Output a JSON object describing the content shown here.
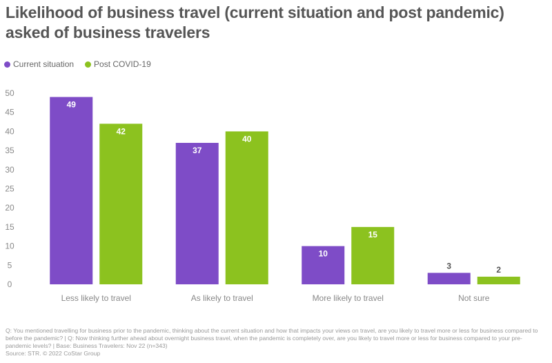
{
  "title": "Likelihood of business travel (current situation and post pandemic) asked of business travelers",
  "legend": [
    {
      "name": "Current situation",
      "color": "#7e4cc7"
    },
    {
      "name": "Post COVID-19",
      "color": "#8cc21f"
    }
  ],
  "chart_data": {
    "type": "bar",
    "title": "Likelihood of business travel (current situation and post pandemic) asked of business travelers",
    "categories": [
      "Less likely to travel",
      "As likely to travel",
      "More likely to travel",
      "Not sure"
    ],
    "series": [
      {
        "name": "Current situation",
        "color": "#7e4cc7",
        "values": [
          49,
          37,
          10,
          3
        ]
      },
      {
        "name": "Post COVID-19",
        "color": "#8cc21f",
        "values": [
          42,
          40,
          15,
          2
        ]
      }
    ],
    "ylim": [
      0,
      50
    ],
    "yticks": [
      0,
      5,
      10,
      15,
      20,
      25,
      30,
      35,
      40,
      45,
      50
    ],
    "grid": false,
    "legend_position": "top-left"
  },
  "footer": {
    "note": "Q: You mentioned travelling for business prior to the pandemic, thinking about the current situation and how that impacts your views on travel, are you likely to travel more or less for business compared to before the pandemic? | Q: Now thinking further ahead about overnight business travel, when the pandemic is completely over, are you likely to travel more or less for business compared to your pre-pandemic levels? | Base: Business Travelers: Nov 22 (n=343)",
    "source": "Source: STR. © 2022 CoStar Group"
  }
}
